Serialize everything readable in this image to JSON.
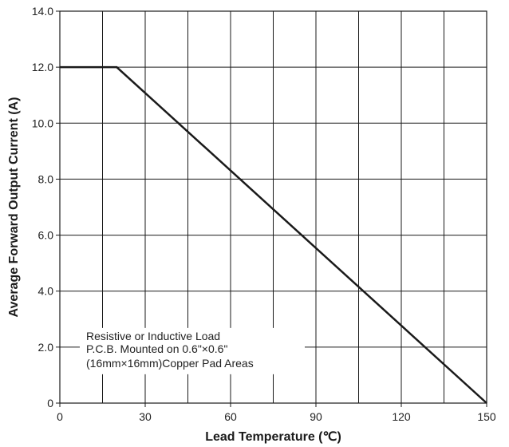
{
  "chart_data": {
    "type": "line",
    "title": "",
    "xlabel": "Lead Temperature (℃)",
    "ylabel": "Average Forward Output Current (A)",
    "xlim": [
      0,
      150
    ],
    "ylim": [
      0,
      14
    ],
    "x_ticks": [
      0,
      30,
      60,
      90,
      120,
      150
    ],
    "x_tick_labels": [
      "0",
      "30",
      "60",
      "90",
      "120",
      "150"
    ],
    "y_ticks": [
      0,
      2,
      4,
      6,
      8,
      10,
      12,
      14
    ],
    "y_tick_labels": [
      "0",
      "2.0",
      "4.0",
      "6.0",
      "8.0",
      "10.0",
      "12.0",
      "14.0"
    ],
    "x_minor_gridlines": [
      15,
      45,
      75,
      105,
      135
    ],
    "grid": true,
    "series": [
      {
        "x": [
          0,
          20,
          150
        ],
        "y": [
          12.0,
          12.0,
          0
        ]
      }
    ],
    "annotation": {
      "lines": [
        "Resistive or Inductive Load",
        "P.C.B. Mounted on 0.6\"×0.6\"",
        "(16mm×16mm)Copper Pad Areas"
      ]
    },
    "colors": {
      "line": "#1a1a1a",
      "grid": "#1a1a1a",
      "axis": "#1a1a1a"
    }
  }
}
